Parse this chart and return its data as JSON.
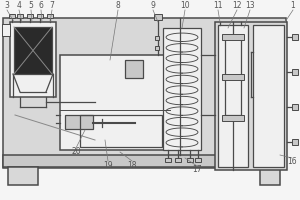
{
  "fig_bg": "#f5f5f5",
  "line_color": "#4a4a4a",
  "dark_fill": "#2a2a2a",
  "gray_fill": "#c8c8c8",
  "light_gray": "#d8d8d8",
  "white_fill": "#f0f0f0",
  "lw_main": 1.1,
  "lw_thin": 0.7,
  "lw_med": 0.9,
  "coil_n": 11,
  "label_color": "#555555",
  "label_fs": 5.5
}
